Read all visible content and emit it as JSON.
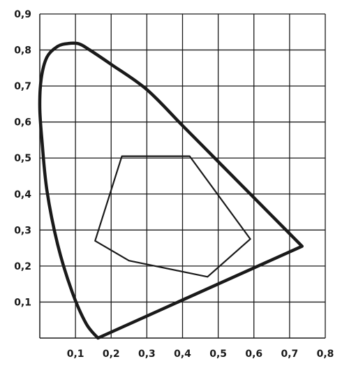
{
  "chart_data": {
    "type": "line",
    "title": "",
    "xlabel": "",
    "ylabel": "",
    "xlim": [
      0,
      0.8
    ],
    "ylim": [
      0,
      0.9
    ],
    "grid": true,
    "x_ticks": [
      "0,1",
      "0,2",
      "0,3",
      "0,4",
      "0,5",
      "0,6",
      "0,7",
      "0,8"
    ],
    "y_ticks": [
      "0,1",
      "0,2",
      "0,3",
      "0,4",
      "0,5",
      "0,6",
      "0,7",
      "0,8",
      "0,9"
    ],
    "series": [
      {
        "closed": true,
        "style": "thick",
        "x": [
          0.163,
          0.13,
          0.09,
          0.05,
          0.02,
          0.006,
          0.0,
          0.004,
          0.02,
          0.05,
          0.08,
          0.11,
          0.14,
          0.2,
          0.3,
          0.4,
          0.5,
          0.6,
          0.7,
          0.735
        ],
        "y": [
          0.0,
          0.04,
          0.13,
          0.26,
          0.41,
          0.55,
          0.64,
          0.72,
          0.78,
          0.81,
          0.818,
          0.817,
          0.8,
          0.76,
          0.69,
          0.59,
          0.49,
          0.39,
          0.29,
          0.255
        ]
      },
      {
        "closed": true,
        "style": "thin",
        "x": [
          0.23,
          0.42,
          0.59,
          0.47,
          0.25,
          0.155
        ],
        "y": [
          0.505,
          0.505,
          0.275,
          0.17,
          0.215,
          0.27
        ]
      }
    ]
  }
}
